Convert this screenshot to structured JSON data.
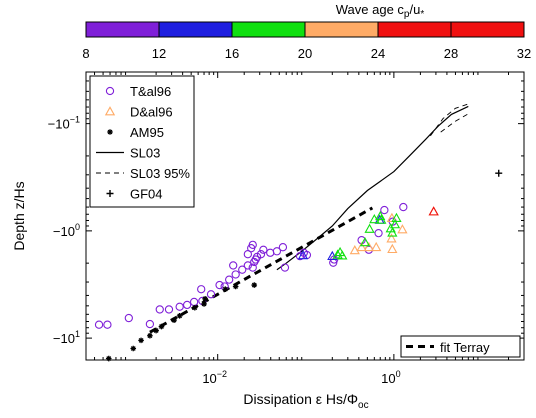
{
  "chart_data": {
    "type": "scatter",
    "colorbar": {
      "label_main": "Wave age c",
      "label_sub1": "p",
      "label_mid": "/u",
      "label_sub2": "*",
      "ticks": [
        "8",
        "12",
        "16",
        "20",
        "24",
        "28",
        "32"
      ],
      "segments": [
        {
          "from": 8,
          "to": 12,
          "color": "#7f1fd8"
        },
        {
          "from": 12,
          "to": 16,
          "color": "#1f1fe0"
        },
        {
          "from": 16,
          "to": 20,
          "color": "#10e010"
        },
        {
          "from": 20,
          "to": 24,
          "color": "#ffab66"
        },
        {
          "from": 24,
          "to": 32,
          "color": "#f01010"
        }
      ]
    },
    "xlabel": "Dissipation ε Hs/Φ",
    "xlabel_sub": "oc",
    "ylabel": "Depth z/Hs",
    "xscale": "log",
    "yscale": "log",
    "xlim": [
      0.00032,
      30
    ],
    "ylim": [
      0.033,
      16
    ],
    "x_ticks": [
      {
        "value": 0.01,
        "base": "10",
        "exp": "−2"
      },
      {
        "value": 1,
        "base": "10",
        "exp": "0"
      }
    ],
    "y_ticks": [
      {
        "value": 0.1,
        "base": "−10",
        "exp": "−1"
      },
      {
        "value": 1,
        "base": "−10",
        "exp": "0"
      },
      {
        "value": 10,
        "base": "−10",
        "exp": "1"
      }
    ],
    "legend": {
      "position": "top-left",
      "entries": [
        {
          "label": "T&al96",
          "marker": "circle",
          "color": "#7f1fd8"
        },
        {
          "label": "D&al96",
          "marker": "triangle",
          "color": "#ffab66"
        },
        {
          "label": "AM95",
          "marker": "asterisk",
          "color": "#000000"
        },
        {
          "label": "SL03",
          "marker": "solid-line",
          "color": "#000000"
        },
        {
          "label": "SL03 95%",
          "marker": "dashed-line",
          "color": "#000000"
        },
        {
          "label": "GF04",
          "marker": "plus",
          "color": "#000000"
        }
      ]
    },
    "fit_legend": {
      "label": "fit Terray",
      "position": "bottom-right"
    },
    "series": [
      {
        "name": "T&al96",
        "marker": "circle",
        "color": "#7f1fd8",
        "points": [
          [
            0.00045,
            7.5
          ],
          [
            0.00056,
            7.5
          ],
          [
            0.00098,
            6.5
          ],
          [
            0.0017,
            7.4
          ],
          [
            0.0022,
            5.4
          ],
          [
            0.0028,
            5.4
          ],
          [
            0.0037,
            5.1
          ],
          [
            0.0045,
            4.9
          ],
          [
            0.0054,
            4.6
          ],
          [
            0.0067,
            4.5
          ],
          [
            0.0065,
            3.5
          ],
          [
            0.0084,
            3.9
          ],
          [
            0.0105,
            3.2
          ],
          [
            0.012,
            3.3
          ],
          [
            0.0135,
            2.85
          ],
          [
            0.016,
            2.55
          ],
          [
            0.015,
            2.1
          ],
          [
            0.019,
            2.3
          ],
          [
            0.022,
            2.1
          ],
          [
            0.025,
            2.2
          ],
          [
            0.026,
            1.95
          ],
          [
            0.027,
            1.85
          ],
          [
            0.022,
            1.65
          ],
          [
            0.028,
            1.75
          ],
          [
            0.031,
            1.65
          ],
          [
            0.024,
            1.45
          ],
          [
            0.033,
            1.5
          ],
          [
            0.025,
            1.35
          ],
          [
            0.0395,
            1.6
          ],
          [
            0.047,
            1.55
          ],
          [
            0.055,
            1.42
          ],
          [
            0.058,
            2.2
          ],
          [
            0.086,
            1.72
          ],
          [
            0.103,
            1.68
          ],
          [
            0.095,
            1.6
          ],
          [
            0.205,
            1.98
          ],
          [
            0.21,
            1.85
          ],
          [
            0.52,
            1.5
          ],
          [
            0.43,
            1.22
          ],
          [
            0.67,
            1.05
          ],
          [
            0.97,
            0.82
          ],
          [
            0.78,
            0.64
          ],
          [
            1.28,
            0.6
          ]
        ]
      },
      {
        "name": "D&al96",
        "marker": "triangle",
        "color": "#ffab66",
        "points": [
          [
            0.36,
            1.52
          ],
          [
            0.43,
            1.42
          ],
          [
            0.52,
            1.42
          ],
          [
            0.63,
            1.42
          ],
          [
            0.96,
            1.48
          ],
          [
            0.94,
            1.18
          ],
          [
            1.25,
            0.97
          ],
          [
            0.95,
            0.76
          ],
          [
            2.83,
            0.66
          ]
        ]
      },
      {
        "name": "wave age 24-32",
        "marker": "triangle",
        "color": "#f01010",
        "points": [
          [
            2.83,
            0.66
          ]
        ]
      },
      {
        "name": "wave age 12-16",
        "marker": "triangle",
        "color": "#1f1fe0",
        "points": [
          [
            0.093,
            1.69
          ],
          [
            0.2,
            1.72
          ],
          [
            0.69,
            0.79
          ]
        ]
      },
      {
        "name": "wave age 16-20",
        "marker": "triangle",
        "color": "#10e010",
        "points": [
          [
            0.23,
            1.67
          ],
          [
            0.26,
            1.7
          ],
          [
            0.245,
            1.58
          ],
          [
            0.47,
            1.28
          ],
          [
            0.53,
            0.96
          ],
          [
            0.6,
            0.78
          ],
          [
            0.7,
            0.73
          ],
          [
            0.72,
            0.79
          ],
          [
            0.96,
            1.04
          ],
          [
            0.92,
            0.95
          ],
          [
            1.03,
            0.87
          ],
          [
            1.07,
            0.76
          ]
        ]
      },
      {
        "name": "AM95",
        "marker": "asterisk",
        "color": "#000000",
        "points": [
          [
            0.00058,
            15.5
          ],
          [
            0.0011,
            12.5
          ],
          [
            0.00135,
            10.5
          ],
          [
            0.0017,
            9.5
          ],
          [
            0.002,
            8.5
          ],
          [
            0.0023,
            7.8
          ],
          [
            0.0032,
            6.8
          ],
          [
            0.0037,
            6.2
          ],
          [
            0.0055,
            5.2
          ],
          [
            0.007,
            4.8
          ],
          [
            0.0072,
            4.3
          ],
          [
            0.0122,
            3.5
          ],
          [
            0.016,
            3.3
          ],
          [
            0.026,
            3.2
          ]
        ]
      },
      {
        "name": "GF04",
        "marker": "plus",
        "color": "#000000",
        "points": [
          [
            15.5,
            0.29
          ]
        ]
      }
    ],
    "lines": [
      {
        "name": "SL03",
        "style": "solid",
        "points": [
          [
            0.047,
            2.3
          ],
          [
            0.06,
            2.0
          ],
          [
            0.09,
            1.55
          ],
          [
            0.14,
            1.15
          ],
          [
            0.2,
            0.9
          ],
          [
            0.3,
            0.62
          ],
          [
            0.5,
            0.42
          ],
          [
            1.0,
            0.28
          ],
          [
            1.5,
            0.2
          ],
          [
            2.3,
            0.14
          ],
          [
            3.2,
            0.105
          ],
          [
            4.5,
            0.082
          ],
          [
            7.0,
            0.069
          ]
        ]
      },
      {
        "name": "SL03 95% upper",
        "style": "dashed",
        "points": [
          [
            2.6,
            0.13
          ],
          [
            3.6,
            0.09
          ],
          [
            5.0,
            0.072
          ],
          [
            7.2,
            0.065
          ]
        ]
      },
      {
        "name": "SL03 95% lower",
        "style": "dashed",
        "points": [
          [
            3.4,
            0.12
          ],
          [
            5.0,
            0.095
          ],
          [
            7.2,
            0.08
          ]
        ]
      },
      {
        "name": "fit Terray",
        "style": "thick-dashed",
        "points": [
          [
            0.0017,
            8.8
          ],
          [
            0.57,
            0.61
          ]
        ]
      }
    ]
  }
}
